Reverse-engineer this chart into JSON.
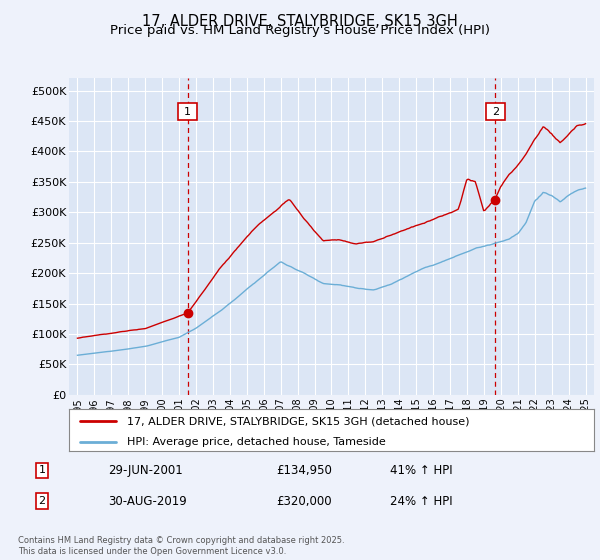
{
  "title": "17, ALDER DRIVE, STALYBRIDGE, SK15 3GH",
  "subtitle": "Price paid vs. HM Land Registry's House Price Index (HPI)",
  "ylabel_ticks": [
    "£0",
    "£50K",
    "£100K",
    "£150K",
    "£200K",
    "£250K",
    "£300K",
    "£350K",
    "£400K",
    "£450K",
    "£500K"
  ],
  "ytick_values": [
    0,
    50000,
    100000,
    150000,
    200000,
    250000,
    300000,
    350000,
    400000,
    450000,
    500000
  ],
  "ylim": [
    0,
    520000
  ],
  "xlim_start": 1994.5,
  "xlim_end": 2025.5,
  "x_years": [
    1995,
    1996,
    1997,
    1998,
    1999,
    2000,
    2001,
    2002,
    2003,
    2004,
    2005,
    2006,
    2007,
    2008,
    2009,
    2010,
    2011,
    2012,
    2013,
    2014,
    2015,
    2016,
    2017,
    2018,
    2019,
    2020,
    2021,
    2022,
    2023,
    2024,
    2025
  ],
  "marker1_x": 2001.5,
  "marker1_y": 134950,
  "marker2_x": 2019.67,
  "marker2_y": 320000,
  "hpi_line_color": "#6baed6",
  "price_line_color": "#cc0000",
  "vline_color": "#cc0000",
  "background_color": "#eef2fb",
  "plot_bg_color": "#dce6f5",
  "grid_color": "#ffffff",
  "legend_label_red": "17, ALDER DRIVE, STALYBRIDGE, SK15 3GH (detached house)",
  "legend_label_blue": "HPI: Average price, detached house, Tameside",
  "marker1_date": "29-JUN-2001",
  "marker1_price": "£134,950",
  "marker1_hpi": "41% ↑ HPI",
  "marker2_date": "30-AUG-2019",
  "marker2_price": "£320,000",
  "marker2_hpi": "24% ↑ HPI",
  "footnote": "Contains HM Land Registry data © Crown copyright and database right 2025.\nThis data is licensed under the Open Government Licence v3.0."
}
